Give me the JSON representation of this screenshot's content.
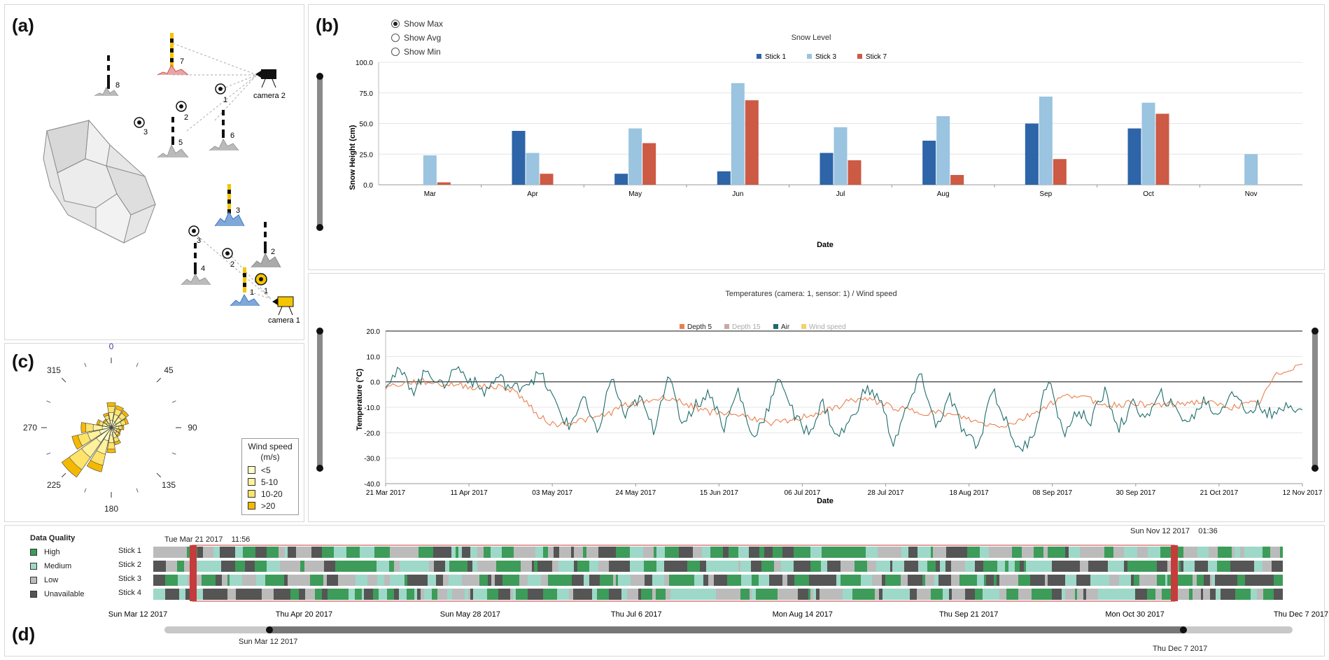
{
  "panel_labels": {
    "a": "(a)",
    "b": "(b)",
    "c": "(c)",
    "d": "(d)"
  },
  "site": {
    "cameras": [
      "camera 2",
      "camera 1"
    ],
    "sticks_top": [
      "8",
      "7",
      "5",
      "6"
    ],
    "sensors_top": [
      "1",
      "2",
      "3"
    ],
    "sticks_bottom": [
      "3",
      "2",
      "4",
      "1"
    ],
    "sensors_bottom": [
      "3",
      "2",
      "1"
    ]
  },
  "snow_chart": {
    "radios": [
      {
        "label": "Show Max",
        "selected": true
      },
      {
        "label": "Show Avg",
        "selected": false
      },
      {
        "label": "Show Min",
        "selected": false
      }
    ],
    "chart_data": {
      "type": "bar",
      "title": "Snow Level",
      "xlabel": "Date",
      "ylabel": "Snow Height (cm)",
      "ylim": [
        0,
        100
      ],
      "yticks": [
        "0.0",
        "25.0",
        "50.0",
        "75.0",
        "100.0"
      ],
      "categories": [
        "Mar",
        "Apr",
        "May",
        "Jun",
        "Jul",
        "Aug",
        "Sep",
        "Oct",
        "Nov"
      ],
      "series": [
        {
          "name": "Stick 1",
          "color": "#2e64a8",
          "values": [
            0,
            44,
            9,
            11,
            26,
            36,
            50,
            46,
            0
          ]
        },
        {
          "name": "Stick 3",
          "color": "#9ac4e0",
          "values": [
            24,
            26,
            46,
            83,
            47,
            56,
            72,
            67,
            25
          ]
        },
        {
          "name": "Stick 7",
          "color": "#cc5a44",
          "values": [
            2,
            9,
            34,
            69,
            20,
            8,
            21,
            58,
            0
          ]
        }
      ],
      "legend": "top-center"
    }
  },
  "temp_chart": {
    "chart_data": {
      "type": "line",
      "title": "Temperatures (camera: 1, sensor: 1) / Wind speed",
      "xlabel": "Date",
      "ylabel": "Temperature (°C)",
      "ylim": [
        -40,
        20
      ],
      "yticks": [
        "-40.0",
        "-30.0",
        "-20.0",
        "-10.0",
        "0.0",
        "10.0",
        "20.0"
      ],
      "xticks": [
        "21 Mar 2017",
        "11 Apr 2017",
        "03 May 2017",
        "24 May 2017",
        "15 Jun 2017",
        "06 Jul 2017",
        "28 Jul 2017",
        "18 Aug 2017",
        "08 Sep 2017",
        "30 Sep 2017",
        "21 Oct 2017",
        "12 Nov 2017"
      ],
      "legend": [
        {
          "name": "Depth 5",
          "color": "#e8804f",
          "active": true
        },
        {
          "name": "Depth 15",
          "color": "#c8a8a8",
          "active": false
        },
        {
          "name": "Air",
          "color": "#1e6b6b",
          "active": true
        },
        {
          "name": "Wind speed",
          "color": "#f2d26a",
          "active": false
        }
      ],
      "series": [
        {
          "name": "Depth 5",
          "color": "#e8804f",
          "values": [
            -2,
            -1,
            0,
            0,
            -1,
            -1,
            -2,
            -2,
            -2,
            -3,
            -8,
            -14,
            -17,
            -16,
            -15,
            -14,
            -12,
            -9,
            -8,
            -7,
            -6,
            -8,
            -10,
            -12,
            -12,
            -13,
            -14,
            -16,
            -16,
            -15,
            -13,
            -12,
            -10,
            -7,
            -7,
            -8,
            -10,
            -11,
            -12,
            -12,
            -13,
            -14,
            -16,
            -17,
            -17,
            -15,
            -12,
            -9,
            -6,
            -5,
            -7,
            -9,
            -9,
            -8,
            -9,
            -9,
            -9,
            -8,
            -8,
            -9,
            -10,
            -9,
            -8,
            2,
            5,
            7
          ]
        },
        {
          "name": "Air",
          "color": "#1e6b6b",
          "values": [
            0,
            4,
            -3,
            5,
            -2,
            6,
            1,
            -4,
            2,
            -3,
            0,
            3,
            -8,
            -18,
            -6,
            -21,
            2,
            -14,
            -6,
            -19,
            3,
            -16,
            -9,
            -4,
            -18,
            -3,
            -22,
            -12,
            2,
            -14,
            -20,
            -8,
            -22,
            -15,
            -3,
            -6,
            -24,
            -10,
            3,
            -18,
            -6,
            -20,
            -26,
            -2,
            -16,
            -28,
            -19,
            2,
            -21,
            -12,
            -15,
            -4,
            -18,
            -9,
            -14,
            -5,
            -11,
            -16,
            -7,
            -13,
            -3,
            -12,
            -9,
            -14,
            -8,
            -11
          ]
        }
      ]
    }
  },
  "wind_rose": {
    "angles": [
      "0",
      "45",
      "90",
      "135",
      "180",
      "225",
      "270",
      "315"
    ],
    "legend_title": "Wind speed (m/s)",
    "legend_items": [
      {
        "label": "<5",
        "color": "#ffffc4"
      },
      {
        "label": "5-10",
        "color": "#fff29a"
      },
      {
        "label": "10-20",
        "color": "#ffe36a"
      },
      {
        "label": ">20",
        "color": "#f5b800"
      }
    ],
    "petals": [
      {
        "dir": 0,
        "value": 0.5
      },
      {
        "dir": 22.5,
        "value": 0.45
      },
      {
        "dir": 45,
        "value": 0.42
      },
      {
        "dir": 67.5,
        "value": 0.35
      },
      {
        "dir": 90,
        "value": 0.25
      },
      {
        "dir": 112.5,
        "value": 0.2
      },
      {
        "dir": 135,
        "value": 0.22
      },
      {
        "dir": 157.5,
        "value": 0.35
      },
      {
        "dir": 180,
        "value": 0.5
      },
      {
        "dir": 202.5,
        "value": 0.9
      },
      {
        "dir": 225,
        "value": 1.2
      },
      {
        "dir": 247.5,
        "value": 0.8
      },
      {
        "dir": 270,
        "value": 0.6
      },
      {
        "dir": 292.5,
        "value": 0.3
      },
      {
        "dir": 315,
        "value": 0.2
      },
      {
        "dir": 337.5,
        "value": 0.3
      }
    ]
  },
  "data_quality": {
    "title": "Data Quality",
    "legend": [
      {
        "label": "High",
        "color": "#3d9c59"
      },
      {
        "label": "Medium",
        "color": "#9ed8c8"
      },
      {
        "label": "Low",
        "color": "#bbbbbb"
      },
      {
        "label": "Unavailable",
        "color": "#555555"
      }
    ],
    "rows": [
      "Stick 1",
      "Stick 2",
      "Stick 3",
      "Stick 4"
    ],
    "marker_start": "Tue Mar 21 2017    11:56",
    "marker_end": "Sun Nov 12 2017    01:36",
    "axis_ticks": [
      "Sun Mar 12 2017",
      "Thu Apr 20 2017",
      "Sun May 28 2017",
      "Thu Jul 6 2017",
      "Mon Aug 14 2017",
      "Thu Sep 21 2017",
      "Mon Oct 30 2017",
      "Thu Dec 7 2017"
    ],
    "slider_start": "Sun Mar 12 2017",
    "slider_end": "Thu Dec 7 2017"
  }
}
